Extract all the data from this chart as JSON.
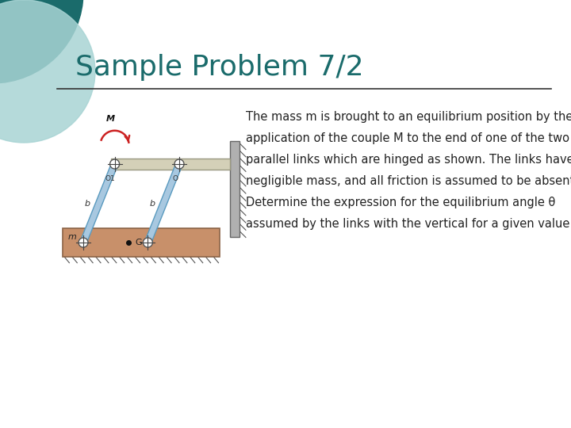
{
  "title": "Sample Problem 7/2",
  "title_color": "#1a6b6b",
  "title_fontsize": 26,
  "bg_color": "#ffffff",
  "description_lines": [
    "The mass m is brought to an equilibrium position by the",
    "application of the couple M to the end of one of the two",
    "parallel links which are hinged as shown. The links have",
    "negligible mass, and all friction is assumed to be absent.",
    "Determine the expression for the equilibrium angle θ",
    "assumed by the links with the vertical for a given value of M."
  ],
  "desc_fontsize": 10.5,
  "desc_color": "#222222",
  "teal_dark": "#1a6b6b",
  "teal_light": "#a8d4d4",
  "link_color": "#a8c8e0",
  "link_edge_color": "#5a9abf",
  "wall_color": "#b0b0b0",
  "ground_color": "#c8906a",
  "ground_edge_color": "#8b6347",
  "mass_label_color": "#222222",
  "moment_arrow_color": "#cc2222",
  "pin_color": "#555555",
  "bar_color": "#d4d0b8",
  "bar_edge_color": "#999880"
}
